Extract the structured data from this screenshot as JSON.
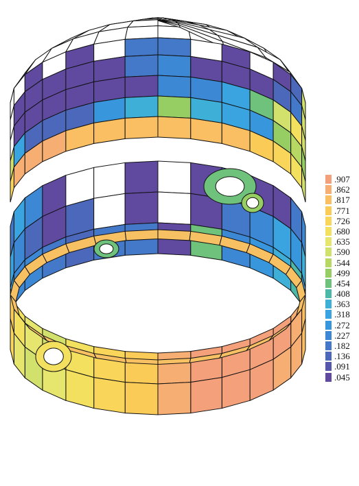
{
  "legend": {
    "items": [
      {
        "label": ".907",
        "color": "#F4A07A"
      },
      {
        "label": ".862",
        "color": "#F6AE72"
      },
      {
        "label": ".817",
        "color": "#F9BF62"
      },
      {
        "label": ".771",
        "color": "#FBCB58"
      },
      {
        "label": ".726",
        "color": "#F9D65A"
      },
      {
        "label": ".680",
        "color": "#F2E05E"
      },
      {
        "label": ".635",
        "color": "#E6E66E"
      },
      {
        "label": ".590",
        "color": "#D2E06C"
      },
      {
        "label": ".544",
        "color": "#B8D864"
      },
      {
        "label": ".499",
        "color": "#97CE64"
      },
      {
        "label": ".454",
        "color": "#6EC27C"
      },
      {
        "label": ".408",
        "color": "#4EB8A8"
      },
      {
        "label": ".363",
        "color": "#3EB0D8"
      },
      {
        "label": ".318",
        "color": "#3AA4E0"
      },
      {
        "label": ".272",
        "color": "#3896DC"
      },
      {
        "label": ".227",
        "color": "#3C88D4"
      },
      {
        "label": ".182",
        "color": "#4478C8"
      },
      {
        "label": ".136",
        "color": "#4C68BA"
      },
      {
        "label": ".091",
        "color": "#5656AC"
      },
      {
        "label": ".045",
        "color": "#604AA0"
      }
    ]
  }
}
